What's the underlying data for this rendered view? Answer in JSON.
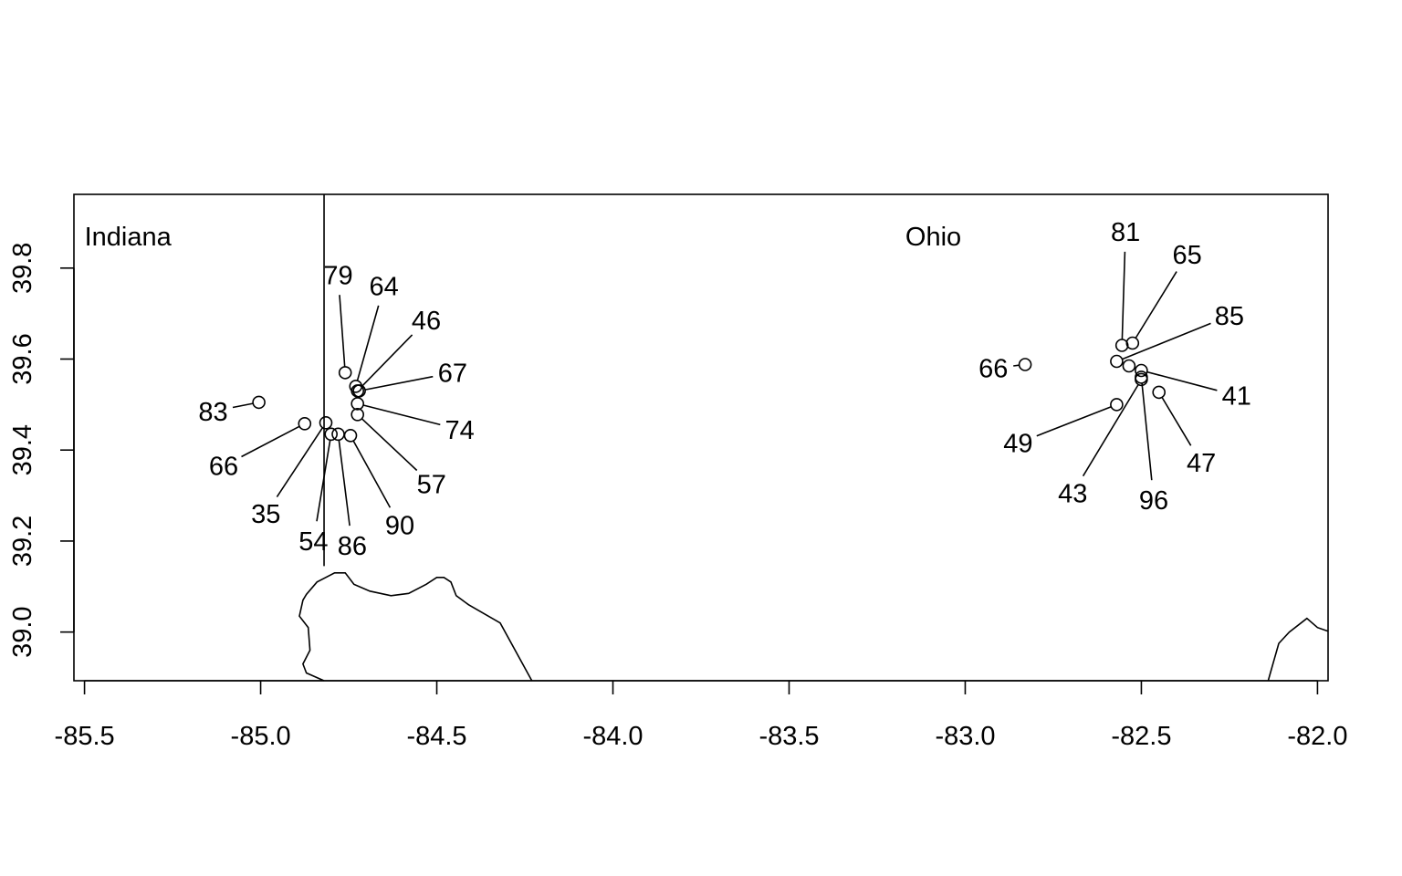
{
  "chart_data": {
    "type": "scatter",
    "title": "",
    "xlabel": "",
    "ylabel": "",
    "xlim": [
      -85.53,
      -81.97
    ],
    "ylim": [
      38.893,
      39.962
    ],
    "x_ticks": [
      {
        "value": -85.5,
        "label": "-85.5"
      },
      {
        "value": -85.0,
        "label": "-85.0"
      },
      {
        "value": -84.5,
        "label": "-84.5"
      },
      {
        "value": -84.0,
        "label": "-84.0"
      },
      {
        "value": -83.5,
        "label": "-83.5"
      },
      {
        "value": -83.0,
        "label": "-83.0"
      },
      {
        "value": -82.5,
        "label": "-82.5"
      },
      {
        "value": -82.0,
        "label": "-82.0"
      }
    ],
    "y_ticks": [
      {
        "value": 39.0,
        "label": "39.0"
      },
      {
        "value": 39.2,
        "label": "39.2"
      },
      {
        "value": 39.4,
        "label": "39.4"
      },
      {
        "value": 39.6,
        "label": "39.6"
      },
      {
        "value": 39.8,
        "label": "39.8"
      }
    ],
    "grid": false,
    "regions": [
      {
        "label": "Indiana",
        "x": -85.5,
        "y": 39.87
      },
      {
        "label": "Ohio",
        "x": -83.17,
        "y": 39.87
      }
    ],
    "state_border_x": -84.82,
    "river_path": [
      [
        -84.82,
        38.893
      ],
      [
        -84.87,
        38.91
      ],
      [
        -84.88,
        38.93
      ],
      [
        -84.86,
        38.96
      ],
      [
        -84.865,
        39.01
      ],
      [
        -84.89,
        39.035
      ],
      [
        -84.88,
        39.07
      ],
      [
        -84.87,
        39.083
      ],
      [
        -84.84,
        39.11
      ],
      [
        -84.79,
        39.13
      ],
      [
        -84.76,
        39.13
      ],
      [
        -84.735,
        39.105
      ],
      [
        -84.69,
        39.09
      ],
      [
        -84.63,
        39.08
      ],
      [
        -84.58,
        39.085
      ],
      [
        -84.53,
        39.105
      ],
      [
        -84.5,
        39.12
      ],
      [
        -84.48,
        39.12
      ],
      [
        -84.46,
        39.11
      ],
      [
        -84.445,
        39.08
      ],
      [
        -84.41,
        39.06
      ],
      [
        -84.32,
        39.02
      ],
      [
        -84.23,
        38.893
      ]
    ],
    "corner_path": [
      [
        -82.14,
        38.893
      ],
      [
        -82.13,
        38.92
      ],
      [
        -82.11,
        38.975
      ],
      [
        -82.08,
        39.0
      ],
      [
        -82.03,
        39.03
      ],
      [
        -82.0,
        39.01
      ],
      [
        -81.97,
        39.002
      ]
    ],
    "points": [
      {
        "x": -85.005,
        "y": 39.505,
        "label": "83",
        "lx": -85.135,
        "ly": 39.485
      },
      {
        "x": -84.76,
        "y": 39.57,
        "label": "79",
        "lx": -84.78,
        "ly": 39.785
      },
      {
        "x": -84.73,
        "y": 39.54,
        "label": "64",
        "lx": -84.65,
        "ly": 39.76
      },
      {
        "x": -84.725,
        "y": 39.53,
        "label": "46",
        "lx": -84.53,
        "ly": 39.685
      },
      {
        "x": -84.72,
        "y": 39.53,
        "label": "67",
        "lx": -84.455,
        "ly": 39.57
      },
      {
        "x": -84.725,
        "y": 39.502,
        "label": "74",
        "lx": -84.435,
        "ly": 39.445
      },
      {
        "x": -84.725,
        "y": 39.478,
        "label": "57",
        "lx": -84.515,
        "ly": 39.325
      },
      {
        "x": -84.875,
        "y": 39.458,
        "label": "66",
        "lx": -85.105,
        "ly": 39.365
      },
      {
        "x": -84.815,
        "y": 39.46,
        "label": "35",
        "lx": -84.985,
        "ly": 39.26
      },
      {
        "x": -84.8,
        "y": 39.435,
        "label": "54",
        "lx": -84.85,
        "ly": 39.2
      },
      {
        "x": -84.78,
        "y": 39.435,
        "label": "86",
        "lx": -84.74,
        "ly": 39.19
      },
      {
        "x": -84.745,
        "y": 39.432,
        "label": "90",
        "lx": -84.605,
        "ly": 39.235
      },
      {
        "x": -82.83,
        "y": 39.588,
        "label": "66",
        "lx": -82.92,
        "ly": 39.58
      },
      {
        "x": -82.555,
        "y": 39.63,
        "label": "81",
        "lx": -82.545,
        "ly": 39.88
      },
      {
        "x": -82.525,
        "y": 39.635,
        "label": "65",
        "lx": -82.37,
        "ly": 39.83
      },
      {
        "x": -82.57,
        "y": 39.595,
        "label": "85",
        "lx": -82.25,
        "ly": 39.695
      },
      {
        "x": -82.535,
        "y": 39.585,
        "label": "",
        "lx": null,
        "ly": null
      },
      {
        "x": -82.5,
        "y": 39.575,
        "label": "41",
        "lx": -82.23,
        "ly": 39.52
      },
      {
        "x": -82.5,
        "y": 39.56,
        "label": "96",
        "lx": -82.465,
        "ly": 39.29
      },
      {
        "x": -82.45,
        "y": 39.527,
        "label": "47",
        "lx": -82.33,
        "ly": 39.372
      },
      {
        "x": -82.57,
        "y": 39.5,
        "label": "49",
        "lx": -82.85,
        "ly": 39.415
      },
      {
        "x": -82.5,
        "y": 39.555,
        "label": "43",
        "lx": -82.695,
        "ly": 39.305
      }
    ]
  }
}
